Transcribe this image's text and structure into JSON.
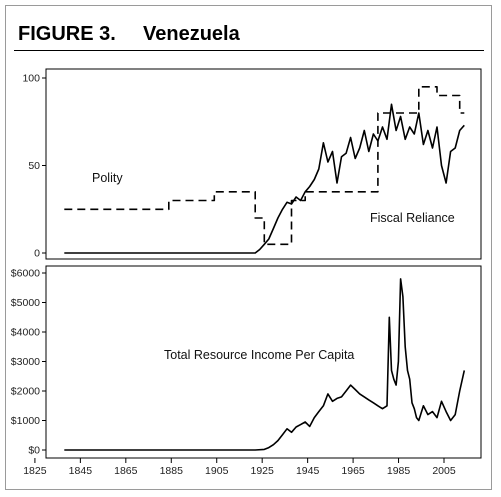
{
  "figure": {
    "number": "FIGURE 3.",
    "country": "Venezuela"
  },
  "chart_data": [
    {
      "type": "line",
      "ylim": [
        0,
        100
      ],
      "xlim": [
        1825,
        2010
      ],
      "yticks": [
        "0",
        "50",
        "100"
      ],
      "ytick_values": [
        0,
        50,
        100
      ],
      "annotations": [
        "Polity",
        "Fiscal Reliance"
      ],
      "series": [
        {
          "name": "Polity",
          "style": "dashed",
          "color": "#000000",
          "x": [
            1830,
            1864,
            1864,
            1876,
            1876,
            1884,
            1884,
            1896,
            1896,
            1906,
            1906,
            1914,
            1914,
            1918,
            1918,
            1930,
            1930,
            1936,
            1936,
            1958,
            1958,
            1968,
            1968,
            1986,
            1986,
            1994,
            1994,
            2004,
            2004,
            2006
          ],
          "y": [
            25,
            25,
            25,
            25,
            30,
            30,
            30,
            30,
            35,
            35,
            35,
            35,
            20,
            20,
            5,
            5,
            30,
            30,
            35,
            35,
            35,
            35,
            80,
            80,
            95,
            95,
            90,
            90,
            80,
            80
          ]
        },
        {
          "name": "Fiscal Reliance",
          "style": "solid",
          "color": "#000000",
          "x": [
            1830,
            1914,
            1916,
            1918,
            1920,
            1922,
            1924,
            1926,
            1928,
            1930,
            1932,
            1934,
            1936,
            1938,
            1940,
            1942,
            1944,
            1946,
            1948,
            1950,
            1952,
            1954,
            1956,
            1958,
            1960,
            1962,
            1964,
            1966,
            1968,
            1970,
            1972,
            1974,
            1976,
            1978,
            1980,
            1982,
            1984,
            1986,
            1988,
            1990,
            1992,
            1994,
            1996,
            1998,
            2000,
            2002,
            2004,
            2006
          ],
          "y": [
            0,
            0,
            2,
            5,
            8,
            14,
            20,
            25,
            29,
            28,
            32,
            30,
            35,
            38,
            42,
            48,
            63,
            52,
            58,
            40,
            55,
            57,
            66,
            54,
            60,
            70,
            58,
            68,
            64,
            72,
            65,
            85,
            70,
            78,
            65,
            72,
            68,
            80,
            62,
            70,
            60,
            72,
            50,
            40,
            58,
            60,
            70,
            73
          ]
        }
      ]
    },
    {
      "type": "line",
      "ylim": [
        0,
        6000
      ],
      "xlim": [
        1825,
        2010
      ],
      "yticks": [
        "$0",
        "$1000",
        "$2000",
        "$3000",
        "$4000",
        "$5000",
        "$6000"
      ],
      "ytick_values": [
        0,
        1000,
        2000,
        3000,
        4000,
        5000,
        6000
      ],
      "xticks": [
        "1825",
        "1845",
        "1865",
        "1885",
        "1905",
        "1925",
        "1945",
        "1965",
        "1985",
        "2005"
      ],
      "xtick_values": [
        1825,
        1845,
        1865,
        1885,
        1905,
        1925,
        1945,
        1965,
        1985,
        2005
      ],
      "annotations": [
        "Total Resource Income Per Capita"
      ],
      "series": [
        {
          "name": "Total Resource Income Per Capita",
          "style": "solid",
          "color": "#000000",
          "x": [
            1830,
            1914,
            1918,
            1920,
            1922,
            1924,
            1926,
            1928,
            1930,
            1932,
            1934,
            1936,
            1938,
            1940,
            1942,
            1944,
            1946,
            1948,
            1950,
            1952,
            1954,
            1956,
            1958,
            1960,
            1962,
            1964,
            1966,
            1968,
            1970,
            1972,
            1973,
            1974,
            1975,
            1976,
            1977,
            1978,
            1979,
            1980,
            1981,
            1982,
            1983,
            1984,
            1985,
            1986,
            1988,
            1990,
            1992,
            1994,
            1996,
            1998,
            2000,
            2002,
            2004,
            2006
          ],
          "y": [
            0,
            0,
            20,
            80,
            180,
            320,
            520,
            720,
            600,
            780,
            860,
            950,
            800,
            1100,
            1300,
            1500,
            1900,
            1650,
            1750,
            1800,
            2000,
            2200,
            2050,
            1900,
            1800,
            1700,
            1600,
            1500,
            1400,
            1500,
            4500,
            2700,
            2400,
            2200,
            3000,
            5800,
            5200,
            3500,
            2700,
            2400,
            1600,
            1400,
            1100,
            1000,
            1500,
            1200,
            1300,
            1100,
            1650,
            1300,
            1000,
            1200,
            2000,
            2700
          ]
        }
      ]
    }
  ]
}
